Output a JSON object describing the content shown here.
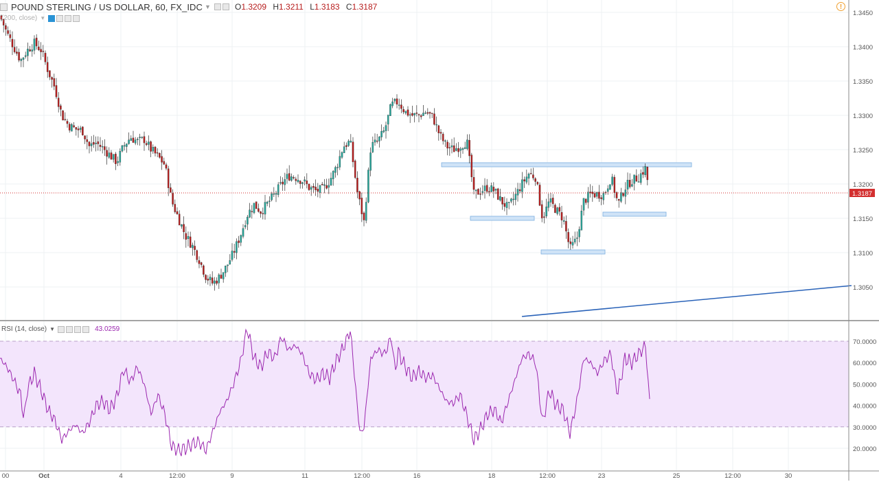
{
  "legend": {
    "symbol": "POUND STERLING / US DOLLAR, 60, FX_IDC",
    "open_label": "O",
    "open": "1.3209",
    "high_label": "H",
    "high": "1.3211",
    "low_label": "L",
    "low": "1.3183",
    "close_label": "C",
    "close": "1.3187"
  },
  "ma_label": "(200, close)",
  "rsi_label": "RSI (14, close)",
  "rsi_value": "43.0259",
  "last_price": "1.3187",
  "colors": {
    "up": "#26a69a",
    "down": "#b71c1c",
    "rsi": "#9b27af",
    "rsi_band": "#f3e5fc",
    "trend": "#2962b8",
    "zone": "#cfe3f7",
    "zone_border": "#7bafe0",
    "price_line": "#d32f2f"
  },
  "chart_data": [
    {
      "type": "candlestick",
      "title": "POUND STERLING / US DOLLAR, 60, FX_IDC",
      "ylim": [
        1.301,
        1.3465
      ],
      "y_ticks": [
        "1.3450",
        "1.3400",
        "1.3350",
        "1.3300",
        "1.3250",
        "1.3200",
        "1.3150",
        "1.3100",
        "1.3050"
      ],
      "x_ticks": [
        "00",
        "Oct",
        "4",
        "12:00",
        "9",
        "11",
        "12:00",
        "16",
        "18",
        "12:00",
        "23",
        "25",
        "12:00",
        "30"
      ],
      "path_points": [
        [
          0,
          1.3445
        ],
        [
          10,
          1.342
        ],
        [
          20,
          1.34
        ],
        [
          30,
          1.338
        ],
        [
          40,
          1.3395
        ],
        [
          50,
          1.3405
        ],
        [
          60,
          1.3395
        ],
        [
          70,
          1.3365
        ],
        [
          80,
          1.334
        ],
        [
          90,
          1.33
        ],
        [
          100,
          1.3285
        ],
        [
          110,
          1.328
        ],
        [
          120,
          1.3278
        ],
        [
          130,
          1.3255
        ],
        [
          140,
          1.326
        ],
        [
          150,
          1.3252
        ],
        [
          160,
          1.3242
        ],
        [
          170,
          1.3232
        ],
        [
          180,
          1.3255
        ],
        [
          190,
          1.3268
        ],
        [
          200,
          1.3262
        ],
        [
          210,
          1.3265
        ],
        [
          220,
          1.325
        ],
        [
          230,
          1.324
        ],
        [
          240,
          1.3228
        ],
        [
          250,
          1.3175
        ],
        [
          260,
          1.315
        ],
        [
          270,
          1.3125
        ],
        [
          280,
          1.311
        ],
        [
          290,
          1.309
        ],
        [
          300,
          1.3065
        ],
        [
          310,
          1.3055
        ],
        [
          320,
          1.3065
        ],
        [
          330,
          1.308
        ],
        [
          340,
          1.31
        ],
        [
          350,
          1.3125
        ],
        [
          360,
          1.3155
        ],
        [
          370,
          1.317
        ],
        [
          380,
          1.316
        ],
        [
          390,
          1.3172
        ],
        [
          400,
          1.3185
        ],
        [
          410,
          1.32
        ],
        [
          420,
          1.3212
        ],
        [
          430,
          1.321
        ],
        [
          440,
          1.3205
        ],
        [
          450,
          1.3195
        ],
        [
          460,
          1.319
        ],
        [
          470,
          1.3192
        ],
        [
          480,
          1.3205
        ],
        [
          490,
          1.3225
        ],
        [
          500,
          1.3255
        ],
        [
          510,
          1.3262
        ],
        [
          520,
          1.319
        ],
        [
          530,
          1.3145
        ],
        [
          540,
          1.3255
        ],
        [
          550,
          1.3262
        ],
        [
          560,
          1.3278
        ],
        [
          570,
          1.3315
        ],
        [
          580,
          1.332
        ],
        [
          590,
          1.3305
        ],
        [
          600,
          1.33
        ],
        [
          610,
          1.33
        ],
        [
          620,
          1.3305
        ],
        [
          630,
          1.3298
        ],
        [
          640,
          1.3272
        ],
        [
          650,
          1.3255
        ],
        [
          660,
          1.325
        ],
        [
          670,
          1.3255
        ],
        [
          680,
          1.3262
        ],
        [
          690,
          1.3185
        ],
        [
          700,
          1.319
        ],
        [
          710,
          1.3195
        ],
        [
          720,
          1.319
        ],
        [
          730,
          1.3175
        ],
        [
          740,
          1.3165
        ],
        [
          750,
          1.3182
        ],
        [
          760,
          1.32
        ],
        [
          770,
          1.3215
        ],
        [
          780,
          1.321
        ],
        [
          790,
          1.315
        ],
        [
          800,
          1.3175
        ],
        [
          810,
          1.3162
        ],
        [
          820,
          1.315
        ],
        [
          830,
          1.3105
        ],
        [
          840,
          1.312
        ],
        [
          850,
          1.3175
        ],
        [
          860,
          1.3185
        ],
        [
          870,
          1.3185
        ],
        [
          880,
          1.3185
        ],
        [
          890,
          1.321
        ],
        [
          900,
          1.317
        ],
        [
          910,
          1.3195
        ],
        [
          920,
          1.3205
        ],
        [
          930,
          1.321
        ],
        [
          940,
          1.3223
        ],
        [
          946,
          1.3187
        ]
      ],
      "zones": [
        {
          "x1": 643,
          "x2": 1007,
          "y": 1.3228
        },
        {
          "x1": 685,
          "x2": 778,
          "y": 1.315
        },
        {
          "x1": 788,
          "x2": 881,
          "y": 1.3101
        },
        {
          "x1": 878,
          "x2": 970,
          "y": 1.3156
        }
      ],
      "trendline": {
        "x1": 760,
        "y1": 1.3007,
        "x2": 1240,
        "y2": 1.3052
      },
      "last_price": 1.3187
    },
    {
      "type": "line",
      "title": "RSI (14, close)",
      "ylim": [
        15,
        77
      ],
      "y_ticks": [
        "70.0000",
        "60.0000",
        "50.0000",
        "40.0000",
        "30.0000",
        "20.0000"
      ],
      "bands": [
        30,
        70
      ],
      "points": [
        [
          0,
          62
        ],
        [
          10,
          58
        ],
        [
          20,
          52
        ],
        [
          30,
          45
        ],
        [
          35,
          33
        ],
        [
          40,
          48
        ],
        [
          50,
          55
        ],
        [
          60,
          47
        ],
        [
          70,
          38
        ],
        [
          80,
          33
        ],
        [
          90,
          24
        ],
        [
          100,
          28
        ],
        [
          110,
          31
        ],
        [
          120,
          27
        ],
        [
          130,
          32
        ],
        [
          140,
          40
        ],
        [
          150,
          42
        ],
        [
          160,
          38
        ],
        [
          170,
          44
        ],
        [
          180,
          57
        ],
        [
          190,
          51
        ],
        [
          200,
          58
        ],
        [
          210,
          50
        ],
        [
          220,
          36
        ],
        [
          230,
          45
        ],
        [
          240,
          36
        ],
        [
          250,
          21
        ],
        [
          260,
          19
        ],
        [
          270,
          20
        ],
        [
          280,
          22
        ],
        [
          290,
          23
        ],
        [
          300,
          19
        ],
        [
          310,
          28
        ],
        [
          320,
          37
        ],
        [
          330,
          42
        ],
        [
          340,
          50
        ],
        [
          350,
          60
        ],
        [
          360,
          76
        ],
        [
          370,
          62
        ],
        [
          380,
          58
        ],
        [
          390,
          65
        ],
        [
          400,
          62
        ],
        [
          410,
          72
        ],
        [
          420,
          66
        ],
        [
          430,
          68
        ],
        [
          440,
          64
        ],
        [
          450,
          55
        ],
        [
          460,
          52
        ],
        [
          470,
          55
        ],
        [
          480,
          53
        ],
        [
          490,
          61
        ],
        [
          500,
          67
        ],
        [
          510,
          75
        ],
        [
          515,
          59
        ],
        [
          520,
          40
        ],
        [
          525,
          26
        ],
        [
          530,
          30
        ],
        [
          540,
          62
        ],
        [
          550,
          66
        ],
        [
          560,
          64
        ],
        [
          570,
          72
        ],
        [
          575,
          56
        ],
        [
          580,
          65
        ],
        [
          590,
          58
        ],
        [
          600,
          53
        ],
        [
          610,
          56
        ],
        [
          620,
          53
        ],
        [
          630,
          54
        ],
        [
          640,
          48
        ],
        [
          650,
          42
        ],
        [
          660,
          41
        ],
        [
          670,
          45
        ],
        [
          680,
          35
        ],
        [
          690,
          24
        ],
        [
          700,
          29
        ],
        [
          710,
          36
        ],
        [
          720,
          38
        ],
        [
          730,
          32
        ],
        [
          740,
          42
        ],
        [
          750,
          52
        ],
        [
          760,
          62
        ],
        [
          770,
          64
        ],
        [
          780,
          60
        ],
        [
          790,
          32
        ],
        [
          800,
          47
        ],
        [
          810,
          40
        ],
        [
          820,
          38
        ],
        [
          830,
          27
        ],
        [
          840,
          42
        ],
        [
          850,
          62
        ],
        [
          860,
          60
        ],
        [
          870,
          55
        ],
        [
          880,
          61
        ],
        [
          890,
          64
        ],
        [
          895,
          52
        ],
        [
          900,
          46
        ],
        [
          910,
          62
        ],
        [
          920,
          60
        ],
        [
          930,
          64
        ],
        [
          940,
          68
        ],
        [
          946,
          43
        ]
      ]
    }
  ]
}
